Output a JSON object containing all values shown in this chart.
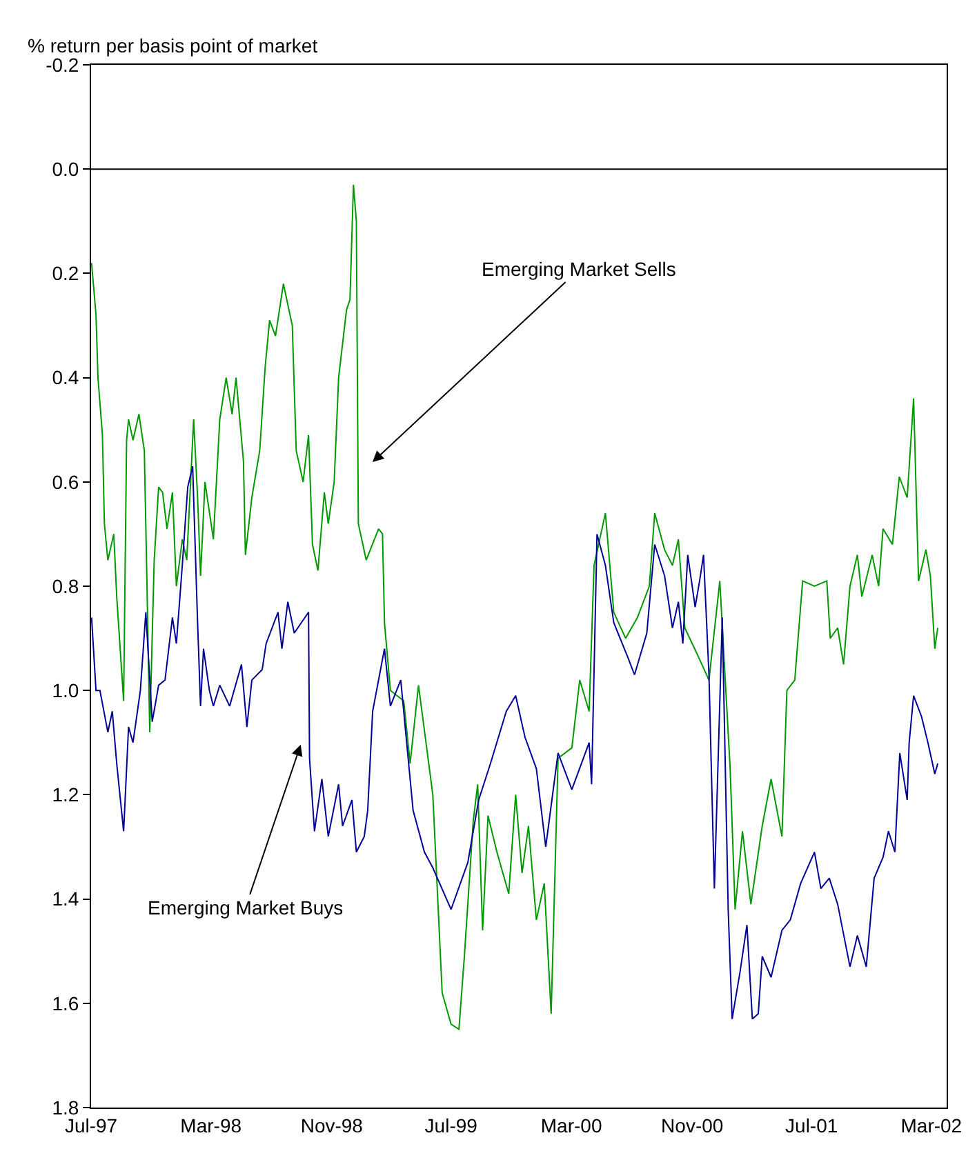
{
  "chart_data": {
    "type": "line",
    "ylabel": "% return per basis point of market",
    "xlim": [
      "1997-07-01",
      "2002-04-01"
    ],
    "xticks": [
      {
        "value": "1997-07-01",
        "label": "Jul-97"
      },
      {
        "value": "1998-03-01",
        "label": "Mar-98"
      },
      {
        "value": "1998-11-01",
        "label": "Nov-98"
      },
      {
        "value": "1999-07-01",
        "label": "Jul-99"
      },
      {
        "value": "2000-03-01",
        "label": "Mar-00"
      },
      {
        "value": "2000-11-01",
        "label": "Nov-00"
      },
      {
        "value": "2001-07-01",
        "label": "Jul-01"
      },
      {
        "value": "2002-03-01",
        "label": "Mar-02"
      }
    ],
    "ylim": [
      1.8,
      -0.2
    ],
    "yticks": [
      -0.2,
      {
        "value": 0,
        "label": "0.0"
      },
      0.2,
      0.4,
      0.6,
      0.8,
      {
        "value": 1,
        "label": "1.0"
      },
      1.2,
      1.4,
      1.6,
      1.8
    ],
    "marker": "none",
    "line_style": "solid",
    "ref_lines": [
      {
        "axis": "y",
        "value": 0,
        "color": "#000000"
      }
    ],
    "annotations": [
      "Emerging Market Sells",
      "Emerging Market Buys"
    ],
    "series": [
      {
        "color": "#009900",
        "x": [
          "1997-07-02",
          "1997-07-11",
          "1997-07-15",
          "1997-07-24",
          "1997-07-28",
          "1997-08-04",
          "1997-08-16",
          "1997-08-22",
          "1997-09-05",
          "1997-09-11",
          "1997-09-15",
          "1997-09-24",
          "1997-10-06",
          "1997-10-17",
          "1997-10-22",
          "1997-10-28",
          "1997-11-06",
          "1997-11-15",
          "1997-11-23",
          "1997-12-02",
          "1997-12-13",
          "1997-12-21",
          "1998-01-02",
          "1998-01-11",
          "1998-01-25",
          "1998-02-02",
          "1998-02-08",
          "1998-02-17",
          "1998-03-06",
          "1998-03-19",
          "1998-04-01",
          "1998-04-13",
          "1998-04-21",
          "1998-05-06",
          "1998-05-10",
          "1998-05-23",
          "1998-06-08",
          "1998-06-19",
          "1998-06-28",
          "1998-07-10",
          "1998-07-26",
          "1998-08-13",
          "1998-08-21",
          "1998-09-04",
          "1998-09-15",
          "1998-09-23",
          "1998-10-04",
          "1998-10-17",
          "1998-10-25",
          "1998-11-06",
          "1998-11-15",
          "1998-12-01",
          "1998-12-08",
          "1998-12-15",
          "1998-12-21",
          "1998-12-25",
          "1999-01-10",
          "1999-02-04",
          "1999-02-12",
          "1999-02-16",
          "1999-02-28",
          "1999-03-27",
          "1999-04-09",
          "1999-04-26",
          "1999-05-25",
          "1999-06-13",
          "1999-07-01",
          "1999-07-17",
          "1999-07-28",
          "1999-08-15",
          "1999-08-24",
          "1999-09-03",
          "1999-09-14",
          "1999-10-02",
          "1999-10-26",
          "1999-11-09",
          "1999-11-22",
          "1999-12-05",
          "1999-12-21",
          "2000-01-06",
          "2000-01-20",
          "2000-02-03",
          "2000-03-02",
          "2000-03-18",
          "2000-04-06",
          "2000-04-16",
          "2000-05-09",
          "2000-05-26",
          "2000-06-19",
          "2000-07-13",
          "2000-08-06",
          "2000-08-17",
          "2000-09-06",
          "2000-09-22",
          "2000-10-04",
          "2000-10-17",
          "2000-11-11",
          "2000-12-05",
          "2000-12-27",
          "2001-01-17",
          "2001-01-27",
          "2001-02-11",
          "2001-02-28",
          "2001-03-23",
          "2001-04-10",
          "2001-05-02",
          "2001-05-12",
          "2001-05-28",
          "2001-06-13",
          "2001-07-07",
          "2001-08-01",
          "2001-08-08",
          "2001-08-23",
          "2001-09-04",
          "2001-09-17",
          "2001-10-02",
          "2001-10-11",
          "2001-11-01",
          "2001-11-14",
          "2001-11-23",
          "2001-12-12",
          "2001-12-26",
          "2002-01-11",
          "2002-01-24",
          "2002-02-03",
          "2002-02-18",
          "2002-02-27",
          "2002-03-08",
          "2002-03-14"
        ],
        "values": [
          0.18,
          0.28,
          0.4,
          0.51,
          0.68,
          0.75,
          0.7,
          0.82,
          1.02,
          0.52,
          0.48,
          0.52,
          0.47,
          0.54,
          0.78,
          1.08,
          0.75,
          0.61,
          0.62,
          0.69,
          0.62,
          0.8,
          0.71,
          0.75,
          0.48,
          0.63,
          0.78,
          0.6,
          0.71,
          0.48,
          0.4,
          0.47,
          0.4,
          0.56,
          0.74,
          0.63,
          0.54,
          0.38,
          0.29,
          0.32,
          0.22,
          0.3,
          0.54,
          0.6,
          0.51,
          0.72,
          0.77,
          0.62,
          0.68,
          0.6,
          0.4,
          0.27,
          0.25,
          0.03,
          0.1,
          0.68,
          0.75,
          0.69,
          0.7,
          0.87,
          1.0,
          1.02,
          1.14,
          0.99,
          1.2,
          1.58,
          1.64,
          1.65,
          1.51,
          1.25,
          1.18,
          1.46,
          1.24,
          1.31,
          1.39,
          1.2,
          1.35,
          1.26,
          1.44,
          1.37,
          1.62,
          1.13,
          1.11,
          0.98,
          1.04,
          0.76,
          0.66,
          0.85,
          0.9,
          0.86,
          0.8,
          0.66,
          0.73,
          0.76,
          0.71,
          0.88,
          0.93,
          0.98,
          0.79,
          1.15,
          1.42,
          1.27,
          1.41,
          1.26,
          1.17,
          1.28,
          1.0,
          0.98,
          0.79,
          0.8,
          0.79,
          0.9,
          0.88,
          0.95,
          0.8,
          0.74,
          0.82,
          0.74,
          0.8,
          0.69,
          0.72,
          0.59,
          0.63,
          0.44,
          0.79,
          0.73,
          0.78,
          0.92,
          0.88
        ]
      },
      {
        "color": "#000099",
        "x": [
          "1997-07-02",
          "1997-07-11",
          "1997-07-19",
          "1997-08-04",
          "1997-08-13",
          "1997-08-22",
          "1997-09-05",
          "1997-09-15",
          "1997-09-24",
          "1997-10-09",
          "1997-10-20",
          "1997-11-02",
          "1997-11-15",
          "1997-11-28",
          "1997-12-13",
          "1997-12-21",
          "1998-01-02",
          "1998-01-13",
          "1998-01-23",
          "1998-02-02",
          "1998-02-08",
          "1998-02-14",
          "1998-02-26",
          "1998-03-06",
          "1998-03-19",
          "1998-04-08",
          "1998-05-02",
          "1998-05-13",
          "1998-05-23",
          "1998-06-13",
          "1998-06-21",
          "1998-07-15",
          "1998-07-23",
          "1998-08-04",
          "1998-08-17",
          "1998-09-15",
          "1998-09-17",
          "1998-09-27",
          "1998-10-12",
          "1998-10-25",
          "1998-11-15",
          "1998-11-23",
          "1998-12-12",
          "1998-12-21",
          "1999-01-06",
          "1999-01-13",
          "1999-01-23",
          "1999-02-16",
          "1999-02-28",
          "1999-03-21",
          "1999-04-15",
          "1999-05-08",
          "1999-05-25",
          "1999-07-01",
          "1999-08-04",
          "1999-08-26",
          "1999-09-19",
          "1999-10-21",
          "1999-11-09",
          "1999-11-28",
          "1999-12-21",
          "2000-01-09",
          "2000-02-03",
          "2000-03-02",
          "2000-04-06",
          "2000-04-11",
          "2000-04-22",
          "2000-05-09",
          "2000-05-26",
          "2000-06-25",
          "2000-07-07",
          "2000-08-01",
          "2000-08-17",
          "2000-09-06",
          "2000-09-22",
          "2000-10-04",
          "2000-10-13",
          "2000-10-23",
          "2000-11-07",
          "2000-11-16",
          "2000-11-24",
          "2000-12-05",
          "2000-12-16",
          "2001-01-01",
          "2001-01-13",
          "2001-01-21",
          "2001-02-06",
          "2001-02-20",
          "2001-03-03",
          "2001-03-15",
          "2001-03-23",
          "2001-04-10",
          "2001-05-02",
          "2001-05-19",
          "2001-06-09",
          "2001-07-07",
          "2001-07-20",
          "2001-08-06",
          "2001-08-23",
          "2001-09-17",
          "2001-10-02",
          "2001-10-20",
          "2001-11-05",
          "2001-11-23",
          "2001-12-04",
          "2001-12-17",
          "2001-12-27",
          "2002-01-11",
          "2002-01-15",
          "2002-01-24",
          "2002-02-09",
          "2002-02-22",
          "2002-03-08",
          "2002-03-14"
        ],
        "values": [
          0.86,
          1.0,
          1.0,
          1.08,
          1.04,
          1.14,
          1.27,
          1.07,
          1.1,
          1.0,
          0.85,
          1.06,
          0.99,
          0.98,
          0.86,
          0.91,
          0.76,
          0.61,
          0.57,
          0.87,
          1.03,
          0.92,
          1.0,
          1.03,
          0.99,
          1.03,
          0.95,
          1.07,
          0.98,
          0.96,
          0.91,
          0.85,
          0.92,
          0.83,
          0.89,
          0.85,
          1.13,
          1.27,
          1.17,
          1.28,
          1.18,
          1.26,
          1.21,
          1.31,
          1.28,
          1.23,
          1.04,
          0.92,
          1.03,
          0.98,
          1.23,
          1.31,
          1.34,
          1.42,
          1.33,
          1.21,
          1.14,
          1.04,
          1.01,
          1.09,
          1.15,
          1.3,
          1.12,
          1.19,
          1.1,
          1.18,
          0.7,
          0.76,
          0.87,
          0.94,
          0.97,
          0.89,
          0.72,
          0.78,
          0.88,
          0.83,
          0.91,
          0.74,
          0.84,
          0.79,
          0.74,
          0.97,
          1.38,
          0.86,
          1.42,
          1.63,
          1.54,
          1.45,
          1.63,
          1.62,
          1.51,
          1.55,
          1.46,
          1.44,
          1.37,
          1.31,
          1.38,
          1.36,
          1.41,
          1.53,
          1.47,
          1.53,
          1.36,
          1.32,
          1.27,
          1.31,
          1.12,
          1.21,
          1.1,
          1.01,
          1.05,
          1.1,
          1.16,
          1.14
        ]
      }
    ]
  }
}
